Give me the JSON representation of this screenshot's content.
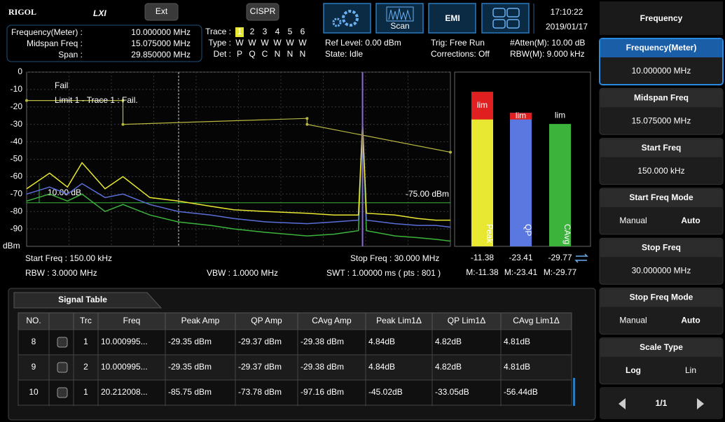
{
  "header": {
    "logo": "RIGOL",
    "lxi": "LXI",
    "buttons": [
      "Ext",
      "CISPR"
    ],
    "scan": "Scan",
    "emi": "EMI",
    "time": "17:10:22",
    "date": "2019/01/17"
  },
  "info": {
    "params": [
      {
        "label": "Frequency(Meter) :",
        "value": "10.000000 MHz"
      },
      {
        "label": "Midspan Freq :",
        "value": "15.075000 MHz"
      },
      {
        "label": "Span :",
        "value": "29.850000 MHz"
      }
    ],
    "trace": {
      "labels": [
        "Trace :",
        "Type :",
        "Det :"
      ],
      "numbers": [
        1,
        2,
        3,
        4,
        5,
        6
      ],
      "types": [
        "W",
        "W",
        "W",
        "W",
        "W",
        "W"
      ],
      "detectors": [
        "P",
        "Q",
        "C",
        "N",
        "N",
        "N"
      ],
      "colors": [
        "#e8e832",
        "#5a78e0",
        "#3cb43c",
        "#777777",
        "#777777",
        "#777777"
      ]
    },
    "status": [
      "Ref Level: 0.00 dBm",
      "State: Idle",
      "Trig: Free Run",
      "Corrections: Off",
      "#Atten(M): 10.00 dB",
      "RBW(M): 9.000 kHz"
    ]
  },
  "spectrum": {
    "type": "line",
    "unit": "dBm",
    "xscale": "log",
    "xlim": [
      0.15,
      30
    ],
    "ylim": [
      -100,
      0
    ],
    "yticks": [
      0,
      -10,
      -20,
      -30,
      -40,
      -50,
      -60,
      -70,
      -80,
      -90
    ],
    "grid": true,
    "x": [
      0.15,
      0.2,
      0.25,
      0.3,
      0.4,
      0.5,
      0.7,
      1,
      1.5,
      2,
      3,
      5,
      7,
      9.5,
      10,
      10.5,
      15,
      20,
      25,
      30
    ],
    "series": [
      {
        "name": "Peak",
        "color": "#e8e832",
        "values": [
          -67,
          -58,
          -66,
          -52,
          -67,
          -60,
          -72,
          -74,
          -77,
          -79,
          -80,
          -81,
          -82,
          -82,
          -29.35,
          -81,
          -82,
          -84,
          -85,
          -85
        ]
      },
      {
        "name": "QP",
        "color": "#5a6ed8",
        "values": [
          -70,
          -66,
          -70,
          -64,
          -72,
          -70,
          -76,
          -80,
          -82,
          -84,
          -86,
          -87,
          -86,
          -85,
          -29.37,
          -85,
          -87,
          -88,
          -88,
          -89
        ]
      },
      {
        "name": "CAvg",
        "color": "#3cb43c",
        "values": [
          -74,
          -70,
          -74,
          -70,
          -80,
          -76,
          -82,
          -86,
          -88,
          -90,
          -92,
          -94,
          -93,
          -91,
          -29.38,
          -91,
          -94,
          -95,
          -96,
          -97
        ]
      }
    ],
    "limit_line": {
      "color": "#b8b840",
      "x": [
        0.15,
        0.5,
        0.5,
        5,
        5,
        30
      ],
      "y": [
        -16.3,
        -16.3,
        -30,
        -26.6,
        -30,
        -46
      ]
    },
    "threshold": -75,
    "threshold_label": "-75.00 dBm",
    "excursion_label": "10.00 dB",
    "marker_x": 10,
    "fail_texts": [
      "Fail",
      "Limit 1 - Trace 1 : Fail."
    ]
  },
  "footer": [
    "Start Freq : 150.00 kHz",
    "Stop Freq : 30.000 MHz",
    "RBW : 3.0000 MHz",
    "VBW : 1.0000 MHz",
    "SWT : 1.00000 ms ( pts : 801 )"
  ],
  "meter": {
    "names": [
      "Peak",
      "QP",
      "CAvg"
    ],
    "values": [
      -11.38,
      -23.41,
      -29.77
    ],
    "colors": [
      "#e8e832",
      "#5a78e0",
      "#3cb43c"
    ],
    "limit": -27.2,
    "limit_label": "lim",
    "marks": [
      "M:-11.38",
      "M:-23.41",
      "M:-29.77"
    ]
  },
  "signal_table": {
    "tab": "Signal Table",
    "headers": [
      "NO.",
      "Trc",
      "Freq",
      "Peak Amp",
      "QP Amp",
      "CAvg Amp",
      "Peak Lim1Δ",
      "QP Lim1Δ",
      "CAvg Lim1Δ"
    ],
    "rows": [
      {
        "cells": [
          8,
          1,
          "10.000995...",
          "-29.35 dBm",
          "-29.37 dBm",
          "-29.38 dBm",
          "4.84dB",
          "4.82dB",
          "4.81dB"
        ],
        "fail": true
      },
      {
        "cells": [
          9,
          2,
          "10.000995...",
          "-29.35 dBm",
          "-29.37 dBm",
          "-29.38 dBm",
          "4.84dB",
          "4.82dB",
          "4.81dB"
        ],
        "fail": true
      },
      {
        "cells": [
          10,
          1,
          "20.212008...",
          "-85.75 dBm",
          "-73.78 dBm",
          "-97.16 dBm",
          "-45.02dB",
          "-33.05dB",
          "-56.44dB"
        ],
        "fail": false
      }
    ]
  },
  "menu": {
    "title": "Frequency",
    "items": [
      {
        "label": "Frequency(Meter)",
        "value": "10.000000 MHz",
        "active": true
      },
      {
        "label": "Midspan Freq",
        "value": "15.075000 MHz"
      },
      {
        "label": "Start Freq",
        "value": "150.000 kHz"
      },
      {
        "label": "Start Freq Mode",
        "options": [
          "Manual",
          "Auto"
        ],
        "selected": 1
      },
      {
        "label": "Stop Freq",
        "value": "30.000000 MHz"
      },
      {
        "label": "Stop Freq Mode",
        "options": [
          "Manual",
          "Auto"
        ],
        "selected": 1
      },
      {
        "label": "Scale Type",
        "options": [
          "Log",
          "Lin"
        ],
        "selected": 0
      }
    ],
    "page": "1/1"
  }
}
